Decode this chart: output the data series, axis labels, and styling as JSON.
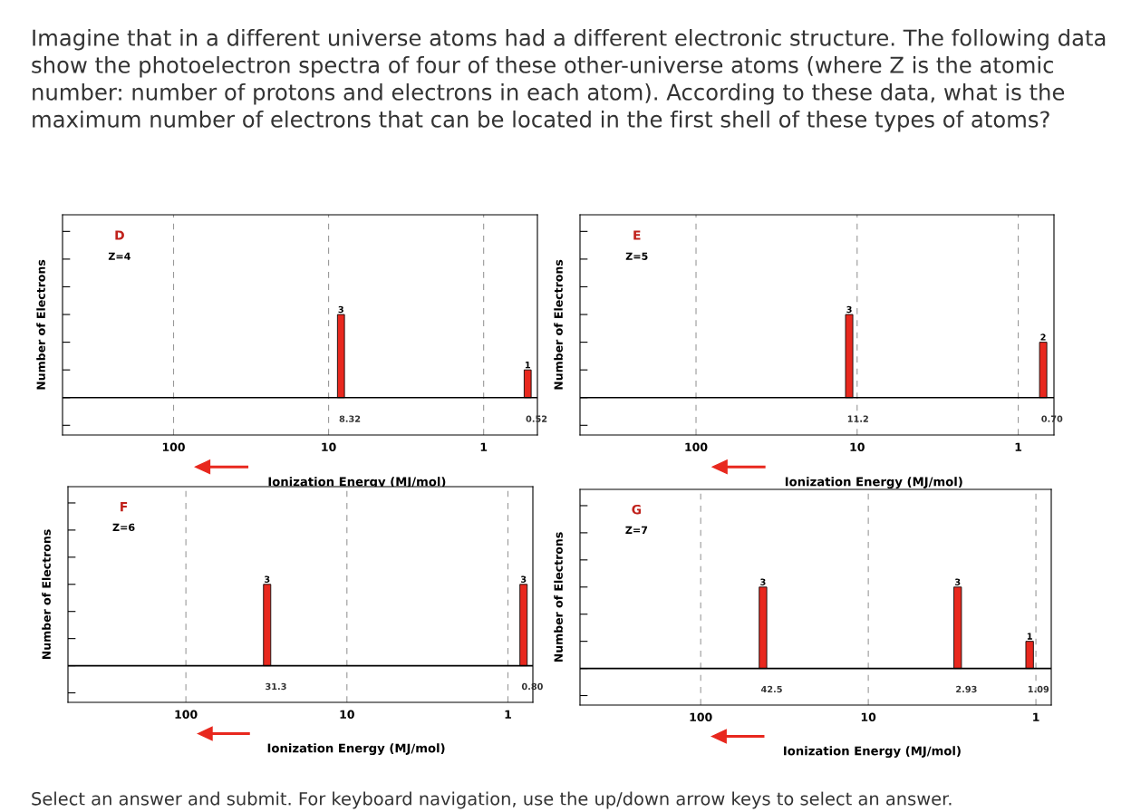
{
  "chart_data": [
    {
      "type": "bar",
      "title": "D",
      "subtitle": "Z=4",
      "xlabel": "Ionization Energy (MJ/mol)",
      "ylabel": "Number of Electrons",
      "x": [
        8.32,
        0.52
      ],
      "values": [
        3,
        1
      ],
      "color": "#e8281e",
      "data_labels": true,
      "log": "x",
      "xlim": [
        520,
        0.45
      ],
      "xticks": [
        100,
        10,
        1
      ],
      "grid": "x",
      "annotations": [
        "8.32",
        "0.52",
        "Imagine that in a different universe atoms had a different electronic structure. The following data show the photoelectron spectra of four of these other-universe atoms (where Z is the atomic number: number of protons and electrons in each atom). According to these data, what is the maximum number of electrons that can be located in the first shell of these types of atoms?",
        "Select an answer and submit. For keyboard navigation, use the up/down arrow keys to select an answer."
      ]
    },
    {
      "type": "bar",
      "title": "E",
      "subtitle": "Z=5",
      "xlabel": "Ionization Energy (MJ/mol)",
      "ylabel": "Number of Electrons",
      "x": [
        11.2,
        0.7
      ],
      "values": [
        3,
        2
      ],
      "color": "#e8281e",
      "data_labels": true,
      "log": "x",
      "xlim": [
        525,
        0.6
      ],
      "xticks": [
        100,
        10,
        1
      ],
      "grid": "x",
      "annotations": [
        "11.2",
        "0.70"
      ]
    },
    {
      "type": "bar",
      "title": "F",
      "subtitle": "Z=6",
      "xlabel": "Ionization Energy (MJ/mol)",
      "ylabel": "Number of Electrons",
      "x": [
        31.3,
        0.8
      ],
      "values": [
        3,
        3
      ],
      "color": "#e8281e",
      "data_labels": true,
      "log": "x",
      "xlim": [
        540,
        0.7
      ],
      "xticks": [
        100,
        10,
        1
      ],
      "grid": "x",
      "annotations": [
        "31.3",
        "0.80"
      ]
    },
    {
      "type": "bar",
      "title": "G",
      "subtitle": "Z=7",
      "xlabel": "Ionization Energy (MJ/mol)",
      "ylabel": "Number of Electrons",
      "x": [
        42.5,
        2.93,
        1.09
      ],
      "values": [
        3,
        3,
        1
      ],
      "color": "#e8281e",
      "data_labels": true,
      "log": "x",
      "xlim": [
        525,
        0.81
      ],
      "xticks": [
        100,
        10,
        1
      ],
      "grid": "x",
      "annotations": [
        "42.5",
        "2.93",
        "1.09"
      ]
    }
  ]
}
